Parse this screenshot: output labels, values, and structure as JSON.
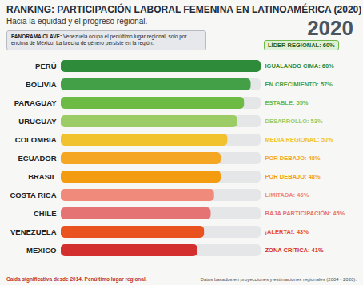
{
  "chart_data": {
    "type": "bar",
    "orientation": "horizontal",
    "title": "RANKING: PARTICIPACIÓN LABORAL FEMENINA EN LATINOAMÉRICA (2020)",
    "subtitle": "Hacia la equidad y el progreso  regional.",
    "year": "2020",
    "panorama": "PANORAMA CLAVE: Venezuela ocupa el penúltimo lugar regional, solo por encima de México. La brecha de género persiste en la región.",
    "leader_label": "LÍDER REGIONAL: 60%",
    "categories": [
      "PERÚ",
      "BOLIVIA",
      "PARAGUAY",
      "URUGUAY",
      "COLOMBIA",
      "ECUADOR",
      "BRASIL",
      "COSTA RICA",
      "CHILE",
      "VENEZUELA",
      "MÉXICO"
    ],
    "values": [
      60,
      57,
      55,
      53,
      50,
      48,
      48,
      46,
      45,
      43,
      41
    ],
    "value_labels": [
      "IGUALANDO CIMA: 60%",
      "EN CRECIMIENTO: 57%",
      "ESTABLE: 55%",
      "DESARROLLO: 53%",
      "MEDIA REGIONAL: 50%",
      "POR DEBAJO: 48%",
      "POR DEBAJO: 48%",
      "LIMITADA: 46%",
      "BAJA PARTICIPACIÓN: 45%",
      "¡ALERTA!: 43%",
      "ZONA CRÍTICA: 41%"
    ],
    "colors": [
      "#2e8b3a",
      "#43a047",
      "#6dbb45",
      "#9ccc65",
      "#f2c12e",
      "#f5a623",
      "#f39c12",
      "#f08a7a",
      "#e57373",
      "#e8531f",
      "#d32f2f"
    ],
    "data_labels": true,
    "tick_labels": "y",
    "xlim": [
      0,
      60
    ],
    "annotation": "Caída significativa desde 2014. Penúltimo lugar regional.",
    "source": "Datos basados en proyecciones y estimaciones regionales (2004 - 2020)."
  }
}
